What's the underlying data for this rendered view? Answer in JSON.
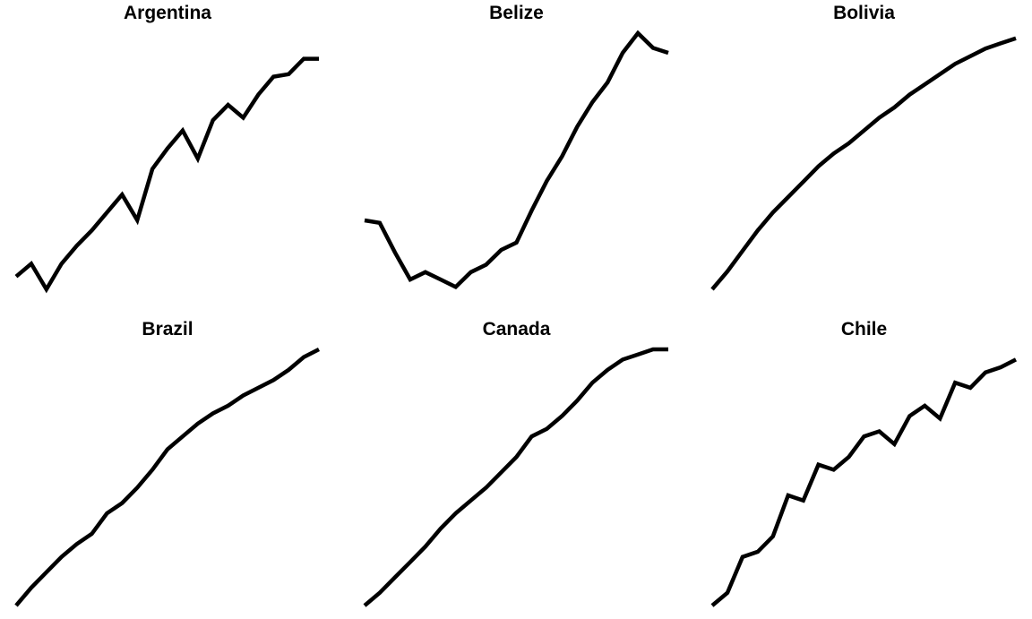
{
  "figure": {
    "line_color": "#000000",
    "background": "#ffffff"
  },
  "chart_data": [
    {
      "type": "line",
      "title": "Argentina",
      "xlabel": "",
      "ylabel": "",
      "grid": false,
      "axes_visible": false,
      "x": [
        1,
        2,
        3,
        4,
        5,
        6,
        7,
        8,
        9,
        10,
        11,
        12,
        13,
        14,
        15,
        16,
        17,
        18,
        19,
        20,
        21
      ],
      "y": [
        0.05,
        0.1,
        0.0,
        0.1,
        0.17,
        0.23,
        0.3,
        0.37,
        0.27,
        0.47,
        0.55,
        0.62,
        0.51,
        0.66,
        0.72,
        0.67,
        0.76,
        0.83,
        0.84,
        0.9,
        0.9
      ],
      "ylim": [
        0,
        1
      ]
    },
    {
      "type": "line",
      "title": "Belize",
      "xlabel": "",
      "ylabel": "",
      "grid": false,
      "axes_visible": false,
      "x": [
        1,
        2,
        3,
        4,
        5,
        6,
        7,
        8,
        9,
        10,
        11,
        12,
        13,
        14,
        15,
        16,
        17,
        18,
        19,
        20,
        21
      ],
      "y": [
        0.28,
        0.27,
        0.15,
        0.04,
        0.07,
        0.04,
        0.01,
        0.07,
        0.1,
        0.16,
        0.19,
        0.32,
        0.44,
        0.54,
        0.66,
        0.76,
        0.84,
        0.96,
        1.04,
        0.98,
        0.96
      ],
      "ylim": [
        0,
        1.04
      ]
    },
    {
      "type": "line",
      "title": "Bolivia",
      "xlabel": "",
      "ylabel": "",
      "grid": false,
      "axes_visible": false,
      "x": [
        1,
        2,
        3,
        4,
        5,
        6,
        7,
        8,
        9,
        10,
        11,
        12,
        13,
        14,
        15,
        16,
        17,
        18,
        19,
        20,
        21
      ],
      "y": [
        0.0,
        0.07,
        0.15,
        0.23,
        0.3,
        0.36,
        0.42,
        0.48,
        0.53,
        0.57,
        0.62,
        0.67,
        0.71,
        0.76,
        0.8,
        0.84,
        0.88,
        0.91,
        0.94,
        0.96,
        0.98
      ],
      "ylim": [
        0,
        1
      ]
    },
    {
      "type": "line",
      "title": "Brazil",
      "xlabel": "",
      "ylabel": "",
      "grid": false,
      "axes_visible": false,
      "x": [
        1,
        2,
        3,
        4,
        5,
        6,
        7,
        8,
        9,
        10,
        11,
        12,
        13,
        14,
        15,
        16,
        17,
        18,
        19,
        20,
        21
      ],
      "y": [
        0.0,
        0.07,
        0.13,
        0.19,
        0.24,
        0.28,
        0.36,
        0.4,
        0.46,
        0.53,
        0.61,
        0.66,
        0.71,
        0.75,
        0.78,
        0.82,
        0.85,
        0.88,
        0.92,
        0.97,
        1.0
      ],
      "ylim": [
        0,
        1
      ]
    },
    {
      "type": "line",
      "title": "Canada",
      "xlabel": "",
      "ylabel": "",
      "grid": false,
      "axes_visible": false,
      "x": [
        1,
        2,
        3,
        4,
        5,
        6,
        7,
        8,
        9,
        10,
        11,
        12,
        13,
        14,
        15,
        16,
        17,
        18,
        19,
        20,
        21
      ],
      "y": [
        0.0,
        0.05,
        0.11,
        0.17,
        0.23,
        0.3,
        0.36,
        0.41,
        0.46,
        0.52,
        0.58,
        0.66,
        0.69,
        0.74,
        0.8,
        0.87,
        0.92,
        0.96,
        0.98,
        1.0,
        1.0
      ],
      "ylim": [
        0,
        1
      ]
    },
    {
      "type": "line",
      "title": "Chile",
      "xlabel": "",
      "ylabel": "",
      "grid": false,
      "axes_visible": false,
      "x": [
        1,
        2,
        3,
        4,
        5,
        6,
        7,
        8,
        9,
        10,
        11,
        12,
        13,
        14,
        15,
        16,
        17,
        18,
        19,
        20,
        21
      ],
      "y": [
        0.0,
        0.05,
        0.19,
        0.21,
        0.27,
        0.43,
        0.41,
        0.55,
        0.53,
        0.58,
        0.66,
        0.68,
        0.63,
        0.74,
        0.78,
        0.73,
        0.87,
        0.85,
        0.91,
        0.93,
        0.96
      ],
      "ylim": [
        0,
        1
      ]
    }
  ]
}
